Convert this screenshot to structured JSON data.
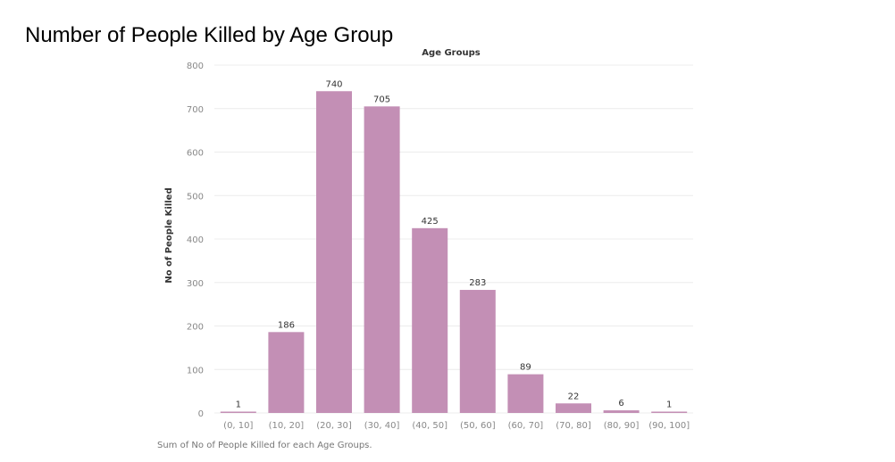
{
  "title": "Number of People Killed by Age Group",
  "footnote": "Sum of No of People Killed for each Age Groups.",
  "colors": {
    "bar": "#c38fb5",
    "grid": "#ececec",
    "tick_text": "#888888",
    "label_text": "#333333",
    "axis_title": "#333333"
  },
  "chart_data": {
    "type": "bar",
    "title": "Number of People Killed by Age Group",
    "xlabel": "Age Groups",
    "ylabel": "No of People Killed",
    "xlabel_position": "top",
    "categories": [
      "(0, 10]",
      "(10, 20]",
      "(20, 30]",
      "(30, 40]",
      "(40, 50]",
      "(50, 60]",
      "(60, 70]",
      "(70, 80]",
      "(80, 90]",
      "(90, 100]"
    ],
    "values": [
      1,
      186,
      740,
      705,
      425,
      283,
      89,
      22,
      6,
      1
    ],
    "ylim": [
      0,
      800
    ],
    "yticks": [
      0,
      100,
      200,
      300,
      400,
      500,
      600,
      700,
      800
    ],
    "grid": true,
    "data_labels": true,
    "legend": "none"
  }
}
